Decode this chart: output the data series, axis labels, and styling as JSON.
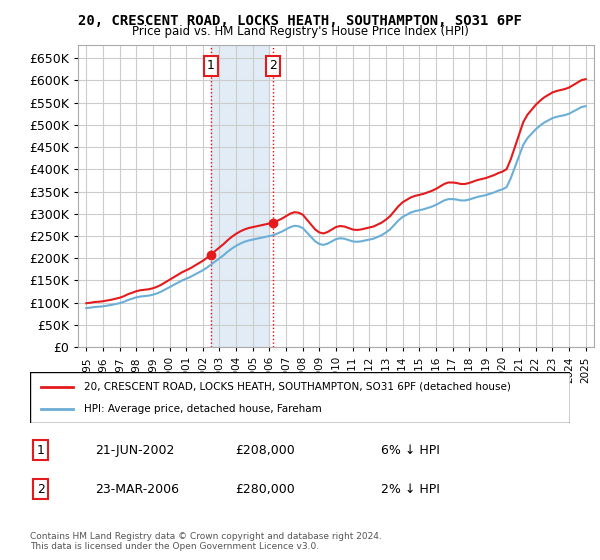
{
  "title": "20, CRESCENT ROAD, LOCKS HEATH, SOUTHAMPTON, SO31 6PF",
  "subtitle": "Price paid vs. HM Land Registry's House Price Index (HPI)",
  "ylabel_ticks": [
    0,
    50000,
    100000,
    150000,
    200000,
    250000,
    300000,
    350000,
    400000,
    450000,
    500000,
    550000,
    600000,
    650000
  ],
  "ylim": [
    0,
    680000
  ],
  "xlim_start": 1994.5,
  "xlim_end": 2025.5,
  "transactions": [
    {
      "label": "1",
      "date": "21-JUN-2002",
      "price": 208000,
      "year": 2002.47,
      "hpi_pct": "6% ↓ HPI"
    },
    {
      "label": "2",
      "date": "23-MAR-2006",
      "price": 280000,
      "year": 2006.22,
      "hpi_pct": "2% ↓ HPI"
    }
  ],
  "hpi_line_color": "#6baed6",
  "property_line_color": "#e41a1c",
  "shade_color": "#c6dbef",
  "shade_alpha": 0.5,
  "grid_color": "#cccccc",
  "background_color": "#ffffff",
  "legend_label_property": "20, CRESCENT ROAD, LOCKS HEATH, SOUTHAMPTON, SO31 6PF (detached house)",
  "legend_label_hpi": "HPI: Average price, detached house, Fareham",
  "footer_text": "Contains HM Land Registry data © Crown copyright and database right 2024.\nThis data is licensed under the Open Government Licence v3.0.",
  "hpi_data_years": [
    1995,
    1995.25,
    1995.5,
    1995.75,
    1996,
    1996.25,
    1996.5,
    1996.75,
    1997,
    1997.25,
    1997.5,
    1997.75,
    1998,
    1998.25,
    1998.5,
    1998.75,
    1999,
    1999.25,
    1999.5,
    1999.75,
    2000,
    2000.25,
    2000.5,
    2000.75,
    2001,
    2001.25,
    2001.5,
    2001.75,
    2002,
    2002.25,
    2002.5,
    2002.75,
    2003,
    2003.25,
    2003.5,
    2003.75,
    2004,
    2004.25,
    2004.5,
    2004.75,
    2005,
    2005.25,
    2005.5,
    2005.75,
    2006,
    2006.25,
    2006.5,
    2006.75,
    2007,
    2007.25,
    2007.5,
    2007.75,
    2008,
    2008.25,
    2008.5,
    2008.75,
    2009,
    2009.25,
    2009.5,
    2009.75,
    2010,
    2010.25,
    2010.5,
    2010.75,
    2011,
    2011.25,
    2011.5,
    2011.75,
    2012,
    2012.25,
    2012.5,
    2012.75,
    2013,
    2013.25,
    2013.5,
    2013.75,
    2014,
    2014.25,
    2014.5,
    2014.75,
    2015,
    2015.25,
    2015.5,
    2015.75,
    2016,
    2016.25,
    2016.5,
    2016.75,
    2017,
    2017.25,
    2017.5,
    2017.75,
    2018,
    2018.25,
    2018.5,
    2018.75,
    2019,
    2019.25,
    2019.5,
    2019.75,
    2020,
    2020.25,
    2020.5,
    2020.75,
    2021,
    2021.25,
    2021.5,
    2021.75,
    2022,
    2022.25,
    2022.5,
    2022.75,
    2023,
    2023.25,
    2023.5,
    2023.75,
    2024,
    2024.25,
    2024.5,
    2024.75,
    2025
  ],
  "hpi_data_values": [
    88000,
    89000,
    90500,
    91000,
    92000,
    93500,
    95000,
    97000,
    99000,
    102000,
    106000,
    109000,
    112000,
    114000,
    115000,
    116000,
    118000,
    121000,
    125000,
    130000,
    135000,
    140000,
    145000,
    150000,
    154000,
    158000,
    163000,
    168000,
    173000,
    179000,
    186000,
    193000,
    200000,
    207000,
    215000,
    222000,
    228000,
    233000,
    237000,
    240000,
    242000,
    244000,
    246000,
    248000,
    250000,
    252000,
    256000,
    260000,
    265000,
    270000,
    273000,
    272000,
    268000,
    258000,
    248000,
    238000,
    232000,
    230000,
    233000,
    238000,
    243000,
    245000,
    244000,
    241000,
    238000,
    237000,
    238000,
    240000,
    242000,
    244000,
    248000,
    252000,
    258000,
    265000,
    275000,
    285000,
    293000,
    298000,
    303000,
    306000,
    308000,
    310000,
    313000,
    316000,
    320000,
    325000,
    330000,
    333000,
    333000,
    332000,
    330000,
    330000,
    332000,
    335000,
    338000,
    340000,
    342000,
    345000,
    348000,
    352000,
    355000,
    360000,
    380000,
    405000,
    430000,
    455000,
    470000,
    480000,
    490000,
    498000,
    505000,
    510000,
    515000,
    518000,
    520000,
    522000,
    525000,
    530000,
    535000,
    540000,
    542000
  ]
}
